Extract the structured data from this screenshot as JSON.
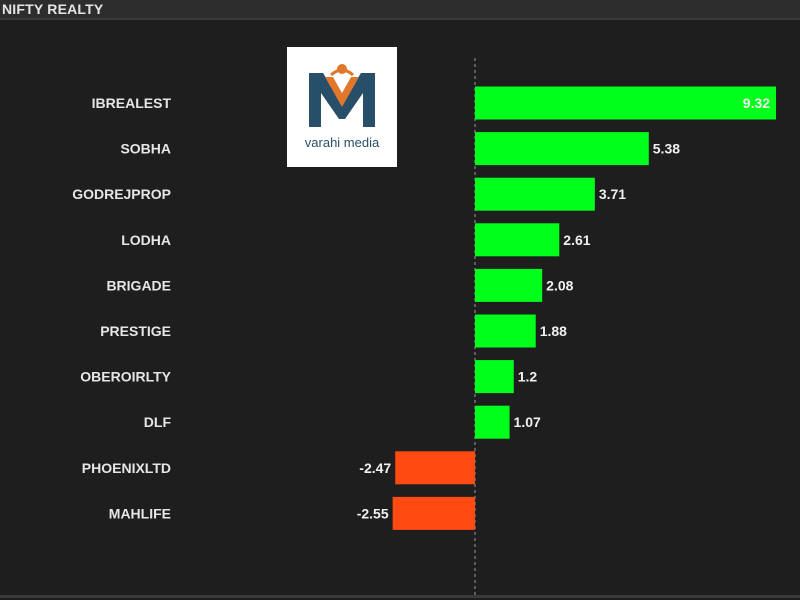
{
  "header": {
    "title": "NIFTY REALTY"
  },
  "logo": {
    "text": "varahi media",
    "brand_colors": [
      "#274f6a",
      "#e0772b"
    ]
  },
  "colors": {
    "positive": "#00ff1a",
    "negative": "#ff4a12",
    "background": "#1e1e1e",
    "zero_line": "#9a9a9a"
  },
  "chart_data": {
    "type": "bar",
    "orientation": "horizontal",
    "title": "NIFTY REALTY",
    "categories": [
      "IBREALEST",
      "SOBHA",
      "GODREJPROP",
      "LODHA",
      "BRIGADE",
      "PRESTIGE",
      "OBEROIRLTY",
      "DLF",
      "PHOENIXLTD",
      "MAHLIFE"
    ],
    "values": [
      9.32,
      5.38,
      3.71,
      2.61,
      2.08,
      1.88,
      1.2,
      1.07,
      -2.47,
      -2.55
    ],
    "value_labels": [
      "9.32",
      "5.38",
      "3.71",
      "2.61",
      "2.08",
      "1.88",
      "1.2",
      "1.07",
      "-2.47",
      "-2.55"
    ],
    "xlim": [
      -14.2,
      10
    ],
    "grid": false,
    "legend": "none"
  }
}
